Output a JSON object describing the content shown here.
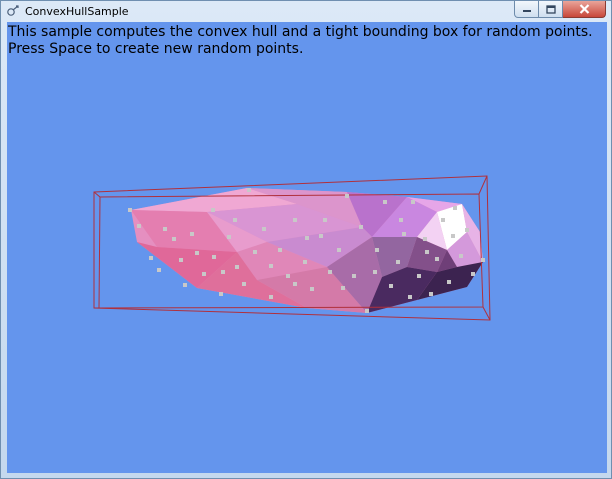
{
  "window": {
    "title": "ConvexHullSample",
    "minimize_label": "minimize",
    "maximize_label": "maximize",
    "close_label": "close"
  },
  "description": {
    "line1": "This sample computes the convex hull and a tight bounding box for random points.",
    "line2": "Press Space to create new random points."
  },
  "colors": {
    "background": "#6495ed",
    "bounding_box": "#b0303c",
    "points": "#c8c8c8"
  }
}
